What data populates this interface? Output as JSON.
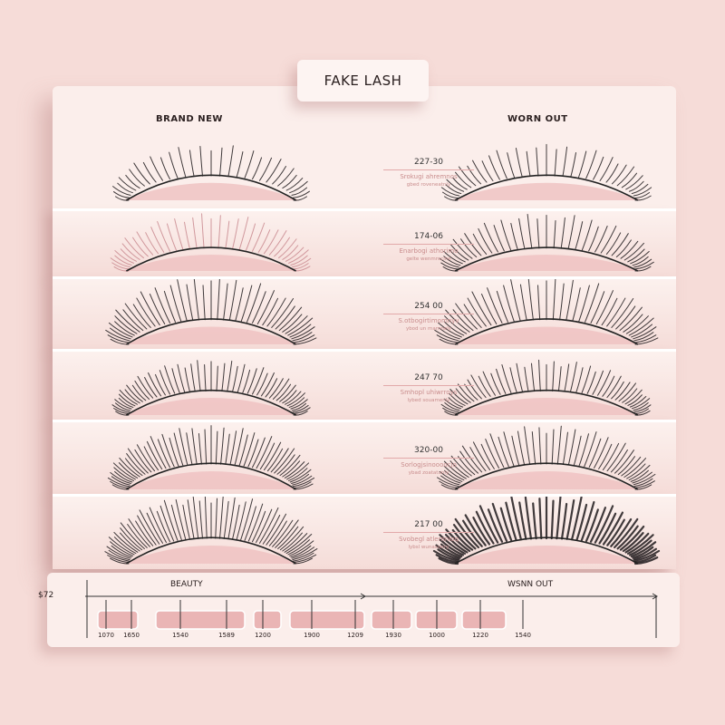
{
  "title": "FAKE LASH",
  "columns": {
    "left": "BRAND NEW",
    "right": "WORN OUT"
  },
  "rows": [
    {
      "number": "227-30",
      "line1": "Srokugi ahremnos",
      "line2": "gbed roveneatnly"
    },
    {
      "number": "174-06",
      "line1": "Enarbogi athorimo",
      "line2": "gelte wenmrocine"
    },
    {
      "number": "254 00",
      "line1": "S.otbogirtimomnyv",
      "line2": "ybod un marnnely"
    },
    {
      "number": "247 70",
      "line1": "Smhopl uhiwrroys",
      "line2": "lybed souamenly"
    },
    {
      "number": "320-00",
      "line1": "Sorlogjsinoooocjo",
      "line2": "ybad zoatatunly"
    },
    {
      "number": "217 00",
      "line1": "Svobegl atlernnioq",
      "line2": "lybsl wunassicry"
    }
  ],
  "timeline": {
    "start_value": "$72",
    "label_left": "BEAUTY",
    "label_right": "WSNN OUT",
    "ticks": [
      "1070",
      "1650",
      "1540",
      "1589",
      "1200",
      "1900",
      "1209",
      "1930",
      "1000",
      "1220",
      "1540"
    ]
  },
  "colors": {
    "background": "#f6dcd8",
    "panel": "#fbeeeb",
    "lash": "#1e1a1c",
    "lid": "#efc1c1"
  }
}
